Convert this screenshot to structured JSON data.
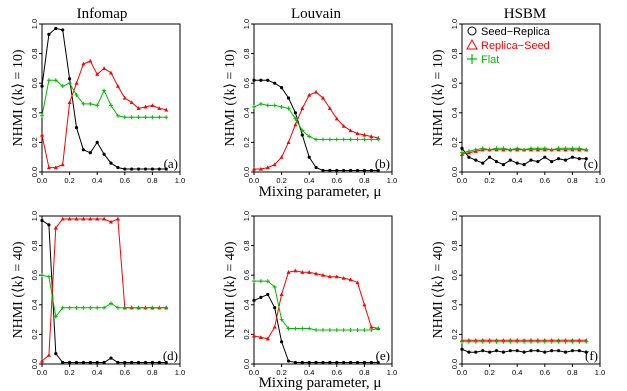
{
  "figure": {
    "xlabel": "Mixing parameter, μ",
    "column_titles": [
      "Infomap",
      "Louvain",
      "HSBM"
    ],
    "ylabel_prefix": "NHMI",
    "ylabel_k": [
      "(⟨k⟩ = 10)",
      "(⟨k⟩ = 40)"
    ],
    "legend": [
      "Seed−Replica",
      "Replica−Seed",
      "Flat"
    ],
    "colors": {
      "Seed-Replica": "#000000",
      "Replica-Seed": "#ff0000",
      "Flat": "#00bb00"
    }
  },
  "chart_data": [
    {
      "type": "line",
      "panel_label": "(a)",
      "title": "Infomap",
      "ylabel": "NHMI (⟨k⟩ = 10)",
      "xlabel": "",
      "xlim": [
        0,
        1
      ],
      "ylim": [
        0,
        1
      ],
      "x_ticks": [
        "0.0",
        "0.2",
        "0.4",
        "0.6",
        "0.8",
        "1.0"
      ],
      "y_ticks": [
        "0.0",
        "0.2",
        "0.4",
        "0.6",
        "0.8",
        "1.0"
      ],
      "x": [
        0.0,
        0.05,
        0.1,
        0.15,
        0.2,
        0.25,
        0.3,
        0.35,
        0.4,
        0.45,
        0.5,
        0.55,
        0.6,
        0.65,
        0.7,
        0.75,
        0.8,
        0.85,
        0.9
      ],
      "series": [
        {
          "name": "Seed−Replica",
          "values": [
            0.58,
            0.93,
            0.97,
            0.96,
            0.63,
            0.3,
            0.15,
            0.13,
            0.2,
            0.12,
            0.06,
            0.03,
            0.02,
            0.02,
            0.02,
            0.02,
            0.02,
            0.02,
            0.02
          ]
        },
        {
          "name": "Replica−Seed",
          "values": [
            0.25,
            0.03,
            0.03,
            0.05,
            0.47,
            0.6,
            0.73,
            0.75,
            0.66,
            0.7,
            0.67,
            0.58,
            0.5,
            0.47,
            0.43,
            0.44,
            0.45,
            0.43,
            0.42
          ]
        },
        {
          "name": "Flat",
          "values": [
            0.38,
            0.62,
            0.62,
            0.58,
            0.6,
            0.52,
            0.46,
            0.46,
            0.45,
            0.55,
            0.45,
            0.38,
            0.37,
            0.37,
            0.37,
            0.37,
            0.37,
            0.37,
            0.37
          ]
        }
      ]
    },
    {
      "type": "line",
      "panel_label": "(b)",
      "title": "Louvain",
      "ylabel": "NHMI (⟨k⟩ = 10)",
      "xlabel": "Mixing parameter, μ",
      "xlim": [
        0,
        1
      ],
      "ylim": [
        0,
        1
      ],
      "x_ticks": [
        "0.0",
        "0.2",
        "0.4",
        "0.6",
        "0.8",
        "1.0"
      ],
      "y_ticks": [
        "0.0",
        "0.2",
        "0.4",
        "0.6",
        "0.8",
        "1.0"
      ],
      "x": [
        0.0,
        0.05,
        0.1,
        0.15,
        0.2,
        0.25,
        0.3,
        0.35,
        0.4,
        0.45,
        0.5,
        0.55,
        0.6,
        0.65,
        0.7,
        0.75,
        0.8,
        0.85,
        0.9
      ],
      "series": [
        {
          "name": "Seed−Replica",
          "values": [
            0.62,
            0.62,
            0.62,
            0.6,
            0.57,
            0.5,
            0.4,
            0.25,
            0.1,
            0.03,
            0.01,
            0.01,
            0.01,
            0.01,
            0.01,
            0.01,
            0.01,
            0.01,
            0.01
          ]
        },
        {
          "name": "Replica−Seed",
          "values": [
            0.02,
            0.02,
            0.03,
            0.05,
            0.1,
            0.2,
            0.32,
            0.43,
            0.52,
            0.54,
            0.5,
            0.43,
            0.36,
            0.31,
            0.28,
            0.26,
            0.25,
            0.24,
            0.23
          ]
        },
        {
          "name": "Flat",
          "values": [
            0.44,
            0.46,
            0.45,
            0.45,
            0.44,
            0.43,
            0.36,
            0.28,
            0.24,
            0.22,
            0.22,
            0.22,
            0.22,
            0.22,
            0.22,
            0.22,
            0.22,
            0.22,
            0.22
          ]
        }
      ]
    },
    {
      "type": "line",
      "panel_label": "(c)",
      "title": "HSBM",
      "ylabel": "NHMI (⟨k⟩ = 10)",
      "xlabel": "",
      "xlim": [
        0,
        1
      ],
      "ylim": [
        0,
        1
      ],
      "x_ticks": [
        "0.0",
        "0.2",
        "0.4",
        "0.6",
        "0.8",
        "1.0"
      ],
      "y_ticks": [
        "0.0",
        "0.2",
        "0.4",
        "0.6",
        "0.8",
        "1.0"
      ],
      "legend_position": "top-right",
      "x": [
        0.0,
        0.05,
        0.1,
        0.15,
        0.2,
        0.25,
        0.3,
        0.35,
        0.4,
        0.45,
        0.5,
        0.55,
        0.6,
        0.65,
        0.7,
        0.75,
        0.8,
        0.85,
        0.9
      ],
      "series": [
        {
          "name": "Seed−Replica",
          "values": [
            0.16,
            0.1,
            0.08,
            0.06,
            0.1,
            0.07,
            0.05,
            0.08,
            0.06,
            0.05,
            0.08,
            0.07,
            0.1,
            0.07,
            0.09,
            0.08,
            0.1,
            0.09,
            0.09
          ]
        },
        {
          "name": "Replica−Seed",
          "values": [
            0.12,
            0.13,
            0.14,
            0.15,
            0.15,
            0.15,
            0.15,
            0.15,
            0.15,
            0.15,
            0.15,
            0.15,
            0.15,
            0.15,
            0.15,
            0.15,
            0.15,
            0.15,
            0.15
          ]
        },
        {
          "name": "Flat",
          "values": [
            0.13,
            0.14,
            0.15,
            0.16,
            0.15,
            0.16,
            0.16,
            0.15,
            0.16,
            0.15,
            0.16,
            0.16,
            0.16,
            0.15,
            0.16,
            0.16,
            0.16,
            0.16,
            0.15
          ]
        }
      ]
    },
    {
      "type": "line",
      "panel_label": "(d)",
      "title": "",
      "ylabel": "NHMI (⟨k⟩ = 40)",
      "xlabel": "",
      "xlim": [
        0,
        1
      ],
      "ylim": [
        0,
        1
      ],
      "x_ticks": [
        "0.0",
        "0.2",
        "0.4",
        "0.6",
        "0.8",
        "1.0"
      ],
      "y_ticks": [
        "0.0",
        "0.2",
        "0.4",
        "0.6",
        "0.8",
        "1.0"
      ],
      "x": [
        0.0,
        0.05,
        0.1,
        0.15,
        0.2,
        0.25,
        0.3,
        0.35,
        0.4,
        0.45,
        0.5,
        0.55,
        0.6,
        0.65,
        0.7,
        0.75,
        0.8,
        0.85,
        0.9
      ],
      "series": [
        {
          "name": "Seed−Replica",
          "values": [
            0.97,
            0.94,
            0.07,
            0.01,
            0.01,
            0.01,
            0.01,
            0.01,
            0.01,
            0.01,
            0.04,
            0.01,
            0.01,
            0.01,
            0.01,
            0.01,
            0.01,
            0.01,
            0.01
          ]
        },
        {
          "name": "Replica−Seed",
          "values": [
            0.02,
            0.06,
            0.92,
            0.98,
            0.98,
            0.98,
            0.98,
            0.98,
            0.98,
            0.98,
            0.96,
            0.98,
            0.38,
            0.38,
            0.38,
            0.38,
            0.38,
            0.38,
            0.38
          ]
        },
        {
          "name": "Flat",
          "values": [
            0.6,
            0.59,
            0.32,
            0.38,
            0.38,
            0.38,
            0.38,
            0.38,
            0.38,
            0.38,
            0.41,
            0.38,
            0.38,
            0.38,
            0.38,
            0.38,
            0.38,
            0.38,
            0.38
          ]
        }
      ]
    },
    {
      "type": "line",
      "panel_label": "(e)",
      "title": "",
      "ylabel": "NHMI (⟨k⟩ = 40)",
      "xlabel": "Mixing parameter, μ",
      "xlim": [
        0,
        1
      ],
      "ylim": [
        0,
        1
      ],
      "x_ticks": [
        "0.0",
        "0.2",
        "0.4",
        "0.6",
        "0.8",
        "1.0"
      ],
      "y_ticks": [
        "0.0",
        "0.2",
        "0.4",
        "0.6",
        "0.8",
        "1.0"
      ],
      "x": [
        0.0,
        0.05,
        0.1,
        0.15,
        0.2,
        0.25,
        0.3,
        0.35,
        0.4,
        0.45,
        0.5,
        0.55,
        0.6,
        0.65,
        0.7,
        0.75,
        0.8,
        0.85,
        0.9
      ],
      "series": [
        {
          "name": "Seed−Replica",
          "values": [
            0.43,
            0.45,
            0.47,
            0.38,
            0.15,
            0.02,
            0.01,
            0.01,
            0.01,
            0.01,
            0.01,
            0.01,
            0.01,
            0.01,
            0.01,
            0.01,
            0.01,
            0.01,
            0.01
          ]
        },
        {
          "name": "Replica−Seed",
          "values": [
            0.19,
            0.18,
            0.17,
            0.25,
            0.47,
            0.62,
            0.63,
            0.62,
            0.62,
            0.61,
            0.6,
            0.59,
            0.59,
            0.58,
            0.57,
            0.55,
            0.4,
            0.25,
            0.24
          ]
        },
        {
          "name": "Flat",
          "values": [
            0.56,
            0.56,
            0.56,
            0.52,
            0.3,
            0.24,
            0.24,
            0.24,
            0.24,
            0.23,
            0.23,
            0.23,
            0.23,
            0.23,
            0.23,
            0.23,
            0.23,
            0.23,
            0.24
          ]
        }
      ]
    },
    {
      "type": "line",
      "panel_label": "(f)",
      "title": "",
      "ylabel": "NHMI (⟨k⟩ = 40)",
      "xlabel": "",
      "xlim": [
        0,
        1
      ],
      "ylim": [
        0,
        1
      ],
      "x_ticks": [
        "0.0",
        "0.2",
        "0.4",
        "0.6",
        "0.8",
        "1.0"
      ],
      "y_ticks": [
        "0.0",
        "0.2",
        "0.4",
        "0.6",
        "0.8",
        "1.0"
      ],
      "x": [
        0.0,
        0.05,
        0.1,
        0.15,
        0.2,
        0.25,
        0.3,
        0.35,
        0.4,
        0.45,
        0.5,
        0.55,
        0.6,
        0.65,
        0.7,
        0.75,
        0.8,
        0.85,
        0.9
      ],
      "series": [
        {
          "name": "Seed−Replica",
          "values": [
            0.1,
            0.08,
            0.08,
            0.09,
            0.08,
            0.09,
            0.08,
            0.09,
            0.09,
            0.08,
            0.09,
            0.09,
            0.08,
            0.09,
            0.09,
            0.08,
            0.09,
            0.09,
            0.08
          ]
        },
        {
          "name": "Replica−Seed",
          "values": [
            0.16,
            0.16,
            0.16,
            0.16,
            0.16,
            0.16,
            0.16,
            0.16,
            0.16,
            0.16,
            0.16,
            0.16,
            0.16,
            0.16,
            0.16,
            0.16,
            0.16,
            0.16,
            0.16
          ]
        },
        {
          "name": "Flat",
          "values": [
            0.15,
            0.15,
            0.15,
            0.15,
            0.15,
            0.15,
            0.15,
            0.15,
            0.15,
            0.15,
            0.15,
            0.15,
            0.15,
            0.15,
            0.15,
            0.15,
            0.15,
            0.15,
            0.15
          ]
        }
      ]
    }
  ]
}
